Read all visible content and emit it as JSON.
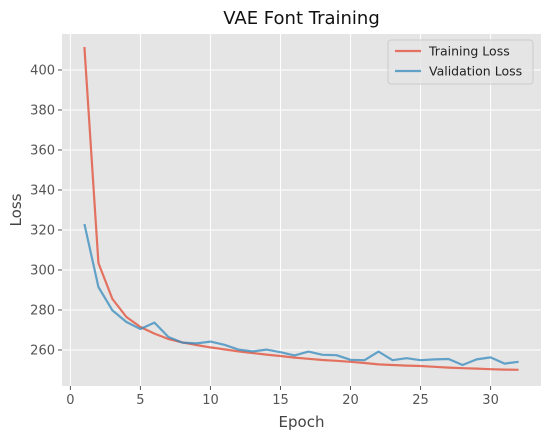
{
  "chart_data": {
    "type": "line",
    "title": "VAE Font Training",
    "xlabel": "Epoch",
    "ylabel": "Loss",
    "xlim": [
      -0.6,
      33.6
    ],
    "ylim": [
      242,
      418
    ],
    "xticks": [
      0,
      5,
      10,
      15,
      20,
      25,
      30
    ],
    "yticks": [
      260,
      280,
      300,
      320,
      340,
      360,
      380,
      400
    ],
    "grid": true,
    "legend_position": "top-right",
    "x": [
      1,
      2,
      3,
      4,
      5,
      6,
      7,
      8,
      9,
      10,
      11,
      12,
      13,
      14,
      15,
      16,
      17,
      18,
      19,
      20,
      21,
      22,
      23,
      24,
      25,
      26,
      27,
      28,
      29,
      30,
      31,
      32
    ],
    "series": [
      {
        "name": "Training Loss",
        "color": "#E24A33",
        "values": [
          411.5,
          303.5,
          285.5,
          276.5,
          271.5,
          268.2,
          265.5,
          263.8,
          262.5,
          261.3,
          260.3,
          259.3,
          258.5,
          257.7,
          257.0,
          256.2,
          255.6,
          255.0,
          254.6,
          254.1,
          253.5,
          252.8,
          252.5,
          252.2,
          252.0,
          251.6,
          251.2,
          250.9,
          250.7,
          250.4,
          250.2,
          250.1
        ]
      },
      {
        "name": "Validation Loss",
        "color": "#348ABD",
        "values": [
          323.0,
          291.5,
          279.8,
          274.0,
          270.5,
          273.7,
          266.5,
          263.7,
          263.3,
          264.2,
          262.6,
          260.2,
          259.3,
          260.2,
          258.9,
          257.3,
          259.2,
          257.6,
          257.4,
          255.1,
          254.9,
          259.2,
          254.9,
          255.9,
          254.9,
          255.3,
          255.5,
          252.5,
          255.3,
          256.3,
          253.2,
          254.1
        ]
      }
    ]
  }
}
